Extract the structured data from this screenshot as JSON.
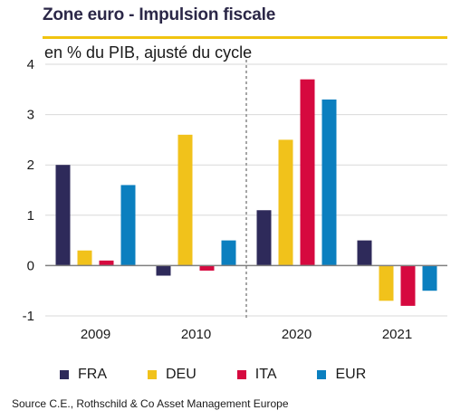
{
  "header": {
    "title": "Zone euro - Impulsion fiscale",
    "subtitle": "en % du PIB, ajusté du cycle"
  },
  "source": "Source C.E., Rothschild  & Co Asset Management Europe",
  "colors": {
    "accent_rule": "#f1c40f",
    "grid": "#d9d9d9",
    "separator": "#a6a6a6"
  },
  "chart_data": {
    "type": "bar",
    "title": "Zone euro - Impulsion fiscale",
    "subtitle": "en % du PIB, ajusté du cycle",
    "categories": [
      "2009",
      "2010",
      "2020",
      "2021"
    ],
    "series": [
      {
        "name": "FRA",
        "color": "#2e2a5a",
        "values": [
          2.0,
          -0.2,
          1.1,
          0.5
        ]
      },
      {
        "name": "DEU",
        "color": "#f1c21b",
        "values": [
          0.3,
          2.6,
          2.5,
          -0.7
        ]
      },
      {
        "name": "ITA",
        "color": "#d6093f",
        "values": [
          0.1,
          -0.1,
          3.7,
          -0.8
        ]
      },
      {
        "name": "EUR",
        "color": "#0b7fbf",
        "values": [
          1.6,
          0.5,
          3.3,
          -0.5
        ]
      }
    ],
    "ylim": [
      -1,
      4
    ],
    "yticks": [
      -1,
      0,
      1,
      2,
      3,
      4
    ],
    "grid": true,
    "separator_between": [
      "2010",
      "2020"
    ],
    "legend_position": "bottom"
  }
}
